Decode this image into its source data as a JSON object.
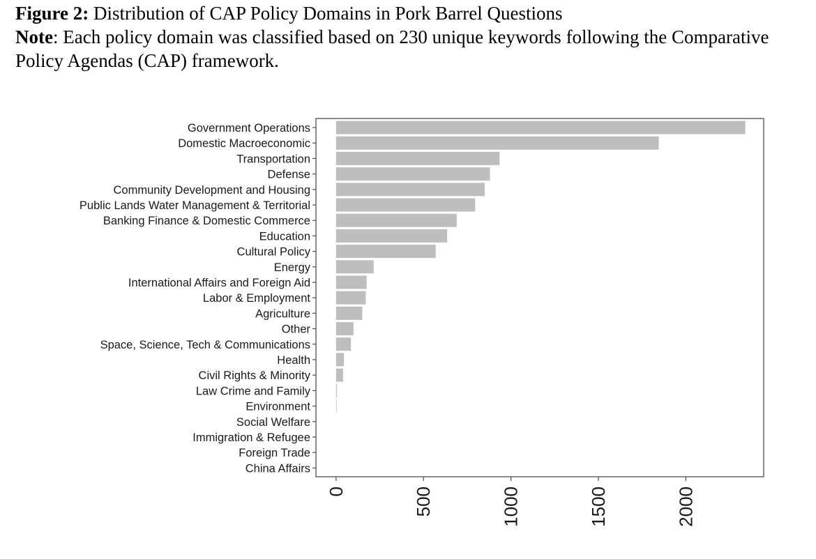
{
  "figure": {
    "label": "Figure 2:",
    "title": "Distribution of CAP Policy Domains in Pork Barrel Questions",
    "note_label": "Note",
    "note_text": ": Each policy domain was classified based on 230 unique keywords following the Comparative Policy Agendas (CAP) framework."
  },
  "chart_data": {
    "type": "bar",
    "orientation": "horizontal",
    "categories": [
      "Government Operations",
      "Domestic Macroeconomic",
      "Transportation",
      "Defense",
      "Community Development and Housing",
      "Public Lands Water Management & Territorial",
      "Banking Finance & Domestic Commerce",
      "Education",
      "Cultural Policy",
      "Energy",
      "International Affairs and Foreign Aid",
      "Labor & Employment",
      "Agriculture",
      "Other",
      "Space, Science, Tech & Communications",
      "Health",
      "Civil Rights & Minority",
      "Law Crime and Family",
      "Environment",
      "Social Welfare",
      "Immigration & Refugee",
      "Foreign Trade",
      "China Affairs"
    ],
    "values": [
      2340,
      1845,
      935,
      880,
      850,
      795,
      690,
      635,
      570,
      215,
      175,
      170,
      150,
      100,
      85,
      45,
      40,
      5,
      3,
      0,
      0,
      0,
      0
    ],
    "xlim": [
      -115,
      2445
    ],
    "x_ticks": [
      0,
      500,
      1000,
      1500,
      2000
    ],
    "x_tick_labels": [
      "0",
      "500",
      "1000",
      "1500",
      "2000"
    ],
    "title": "",
    "xlabel": "",
    "ylabel": "",
    "grid": false,
    "bar_color": "#bebebe",
    "frame_color": "#4d4d4d"
  }
}
